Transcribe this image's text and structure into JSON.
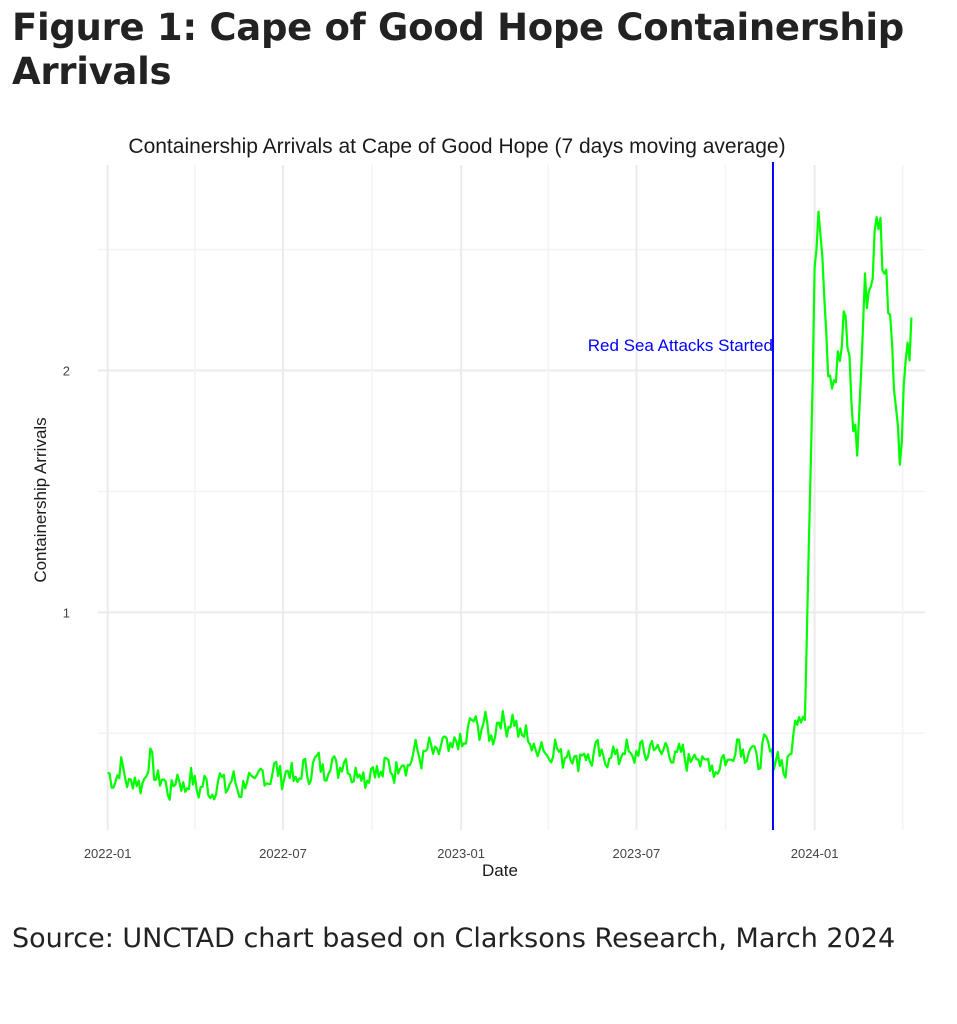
{
  "figure_title": "Figure 1: Cape of Good Hope Containership Arrivals",
  "source_text": "Source: UNCTAD chart based on Clarksons Research, March 2024",
  "chart_data": {
    "type": "line",
    "title": "Containership Arrivals at Cape of Good Hope (7 days moving average)",
    "xlabel": "Date",
    "ylabel": "Containership Arrivals",
    "x_ticks": [
      "2022-01",
      "2022-07",
      "2023-01",
      "2023-07",
      "2024-01"
    ],
    "y_ticks": [
      1,
      2
    ],
    "ylim": [
      0.1,
      2.85
    ],
    "xlim": [
      "2021-12-22",
      "2024-04-24"
    ],
    "grid": true,
    "series": [
      {
        "color": "#00ff00",
        "points": [
          [
            "2022-01-01",
            0.31
          ],
          [
            "2022-01-15",
            0.34
          ],
          [
            "2022-02-01",
            0.28
          ],
          [
            "2022-02-15",
            0.38
          ],
          [
            "2022-03-01",
            0.27
          ],
          [
            "2022-03-15",
            0.3
          ],
          [
            "2022-04-01",
            0.29
          ],
          [
            "2022-04-15",
            0.27
          ],
          [
            "2022-05-01",
            0.3
          ],
          [
            "2022-05-15",
            0.28
          ],
          [
            "2022-06-01",
            0.3
          ],
          [
            "2022-06-15",
            0.33
          ],
          [
            "2022-07-01",
            0.34
          ],
          [
            "2022-07-15",
            0.31
          ],
          [
            "2022-08-01",
            0.37
          ],
          [
            "2022-08-15",
            0.36
          ],
          [
            "2022-09-01",
            0.38
          ],
          [
            "2022-09-15",
            0.33
          ],
          [
            "2022-10-01",
            0.34
          ],
          [
            "2022-10-15",
            0.35
          ],
          [
            "2022-11-01",
            0.37
          ],
          [
            "2022-11-15",
            0.41
          ],
          [
            "2022-12-01",
            0.42
          ],
          [
            "2022-12-15",
            0.44
          ],
          [
            "2023-01-01",
            0.45
          ],
          [
            "2023-01-15",
            0.55
          ],
          [
            "2023-02-01",
            0.5
          ],
          [
            "2023-02-15",
            0.56
          ],
          [
            "2023-03-01",
            0.52
          ],
          [
            "2023-03-15",
            0.45
          ],
          [
            "2023-04-01",
            0.43
          ],
          [
            "2023-04-15",
            0.42
          ],
          [
            "2023-05-01",
            0.4
          ],
          [
            "2023-05-15",
            0.41
          ],
          [
            "2023-06-01",
            0.4
          ],
          [
            "2023-06-15",
            0.42
          ],
          [
            "2023-07-01",
            0.41
          ],
          [
            "2023-07-15",
            0.44
          ],
          [
            "2023-08-01",
            0.43
          ],
          [
            "2023-08-15",
            0.4
          ],
          [
            "2023-09-01",
            0.41
          ],
          [
            "2023-09-15",
            0.36
          ],
          [
            "2023-10-01",
            0.38
          ],
          [
            "2023-10-15",
            0.46
          ],
          [
            "2023-11-01",
            0.4
          ],
          [
            "2023-11-15",
            0.44
          ],
          [
            "2023-12-01",
            0.35
          ],
          [
            "2023-12-10",
            0.45
          ],
          [
            "2023-12-15",
            0.62
          ],
          [
            "2023-12-22",
            0.58
          ],
          [
            "2023-12-27",
            1.4
          ],
          [
            "2024-01-01",
            2.4
          ],
          [
            "2024-01-04",
            2.7
          ],
          [
            "2024-01-08",
            2.55
          ],
          [
            "2024-01-15",
            2.1
          ],
          [
            "2024-01-22",
            1.9
          ],
          [
            "2024-02-01",
            2.25
          ],
          [
            "2024-02-08",
            1.85
          ],
          [
            "2024-02-15",
            1.72
          ],
          [
            "2024-02-22",
            2.3
          ],
          [
            "2024-03-01",
            2.45
          ],
          [
            "2024-03-08",
            2.62
          ],
          [
            "2024-03-15",
            2.4
          ],
          [
            "2024-03-22",
            2.05
          ],
          [
            "2024-03-29",
            1.68
          ],
          [
            "2024-04-05",
            2.05
          ],
          [
            "2024-04-10",
            2.22
          ]
        ]
      }
    ],
    "annotations": [
      {
        "type": "vline",
        "x": "2023-11-19",
        "color": "#0000ff",
        "label": "Red Sea Attacks Started"
      }
    ]
  }
}
